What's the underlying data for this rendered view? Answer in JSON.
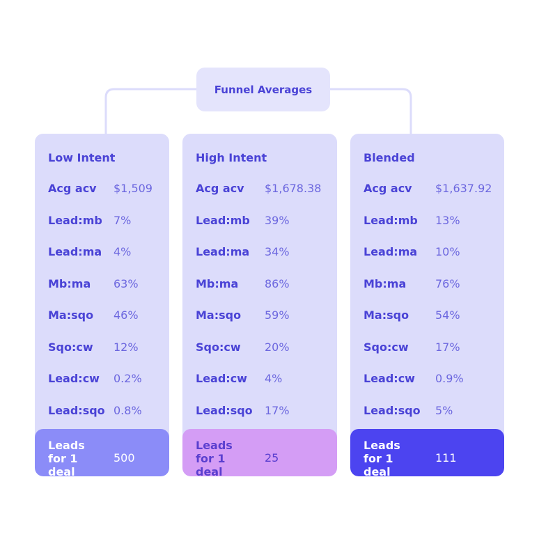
{
  "header": {
    "title": "Funnel Averages"
  },
  "columns": [
    {
      "title": "Low Intent",
      "rows": [
        [
          "Acg acv",
          "$1,509"
        ],
        [
          "Lead:mb",
          "7%"
        ],
        [
          "Lead:ma",
          "4%"
        ],
        [
          "Mb:ma",
          "63%"
        ],
        [
          "Ma:sqo",
          "46%"
        ],
        [
          "Sqo:cw",
          "12%"
        ],
        [
          "Lead:cw",
          "0.2%"
        ],
        [
          "Lead:sqo",
          "0.8%"
        ]
      ],
      "footer": {
        "label": "Leads for 1 deal",
        "value": "500"
      }
    },
    {
      "title": "High Intent",
      "rows": [
        [
          "Acg acv",
          "$1,678.38"
        ],
        [
          "Lead:mb",
          "39%"
        ],
        [
          "Lead:ma",
          "34%"
        ],
        [
          "Mb:ma",
          "86%"
        ],
        [
          "Ma:sqo",
          "59%"
        ],
        [
          "Sqo:cw",
          "20%"
        ],
        [
          "Lead:cw",
          "4%"
        ],
        [
          "Lead:sqo",
          "17%"
        ]
      ],
      "footer": {
        "label": "Leads for 1 deal",
        "value": "25"
      }
    },
    {
      "title": "Blended",
      "rows": [
        [
          "Acg acv",
          "$1,637.92"
        ],
        [
          "Lead:mb",
          "13%"
        ],
        [
          "Lead:ma",
          "10%"
        ],
        [
          "Mb:ma",
          "76%"
        ],
        [
          "Ma:sqo",
          "54%"
        ],
        [
          "Sqo:cw",
          "17%"
        ],
        [
          "Lead:cw",
          "0.9%"
        ],
        [
          "Lead:sqo",
          "5%"
        ]
      ],
      "footer": {
        "label": "Leads for 1 deal",
        "value": "111"
      }
    }
  ]
}
